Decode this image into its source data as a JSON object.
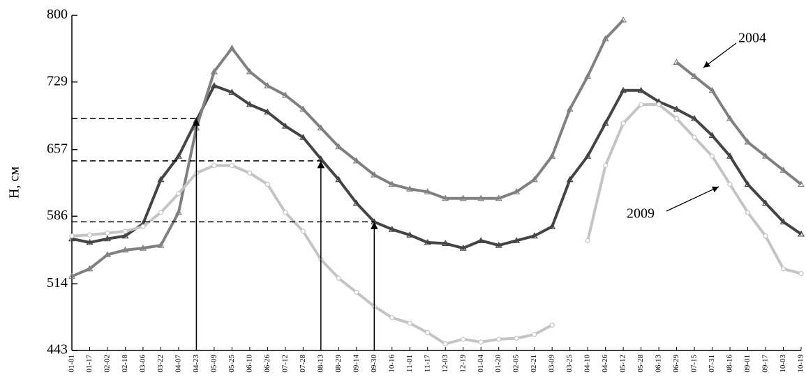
{
  "chart_data": {
    "type": "line",
    "y_label": "H, см",
    "categories": [
      "01-01",
      "01-17",
      "02-02",
      "02-18",
      "03-06",
      "03-22",
      "04-07",
      "04-23",
      "05-09",
      "05-25",
      "06-10",
      "06-26",
      "07-12",
      "07-28",
      "08-13",
      "08-29",
      "09-14",
      "09-30",
      "10-16",
      "11-01",
      "11-17",
      "12-03",
      "12-19",
      "01-04",
      "01-20",
      "02-05",
      "02-21",
      "03-09",
      "03-25",
      "04-10",
      "04-26",
      "05-12",
      "05-28",
      "06-13",
      "06-29",
      "07-15",
      "07-31",
      "08-16",
      "09-01",
      "09-17",
      "10-03",
      "10-19"
    ],
    "series": [
      {
        "color": "#444444",
        "values": [
          562,
          558,
          562,
          565,
          578,
          625,
          650,
          688,
          725,
          718,
          705,
          697,
          682,
          670,
          647,
          625,
          600,
          580,
          572,
          566,
          558,
          557,
          552,
          560,
          555,
          560,
          565,
          575,
          625,
          650,
          685,
          720,
          720,
          708,
          700,
          690,
          672,
          650,
          620,
          600,
          580,
          567
        ]
      },
      {
        "name": "2004",
        "color": "#808080",
        "values": [
          522,
          530,
          545,
          550,
          552,
          555,
          590,
          680,
          740,
          765,
          740,
          725,
          715,
          700,
          680,
          660,
          645,
          630,
          620,
          615,
          612,
          605,
          605,
          605,
          605,
          612,
          625,
          650,
          700,
          735,
          775,
          795,
          null,
          null,
          750,
          735,
          720,
          690,
          665,
          650,
          635,
          620
        ]
      },
      {
        "name": "2009",
        "color": "#c4c4c4",
        "values": [
          565,
          566,
          568,
          570,
          575,
          590,
          610,
          632,
          640,
          640,
          632,
          620,
          590,
          570,
          540,
          520,
          505,
          490,
          478,
          472,
          462,
          450,
          455,
          452,
          455,
          456,
          460,
          470,
          null,
          560,
          640,
          685,
          705,
          705,
          690,
          670,
          650,
          620,
          590,
          565,
          530,
          525
        ]
      }
    ],
    "reference_points": [
      {
        "x": "04-23",
        "y": 690
      },
      {
        "x": "08-13",
        "y": 645
      },
      {
        "x": "09-30",
        "y": 580
      }
    ],
    "ylim": [
      443,
      800
    ],
    "yticks": [
      443,
      514,
      586,
      657,
      729,
      800
    ]
  }
}
